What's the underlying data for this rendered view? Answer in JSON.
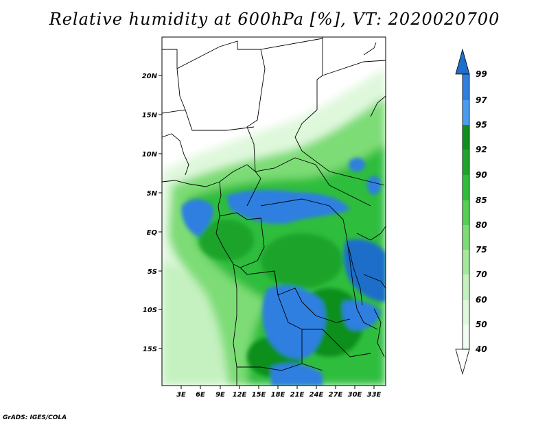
{
  "title": "Relative humidity at 600hPa [%], VT: 2020020700",
  "credit": "GrADS: IGES/COLA",
  "map": {
    "lat_ticks": [
      "20N",
      "15N",
      "10N",
      "5N",
      "EQ",
      "5S",
      "10S",
      "15S"
    ],
    "lon_ticks": [
      "3E",
      "6E",
      "9E",
      "12E",
      "15E",
      "18E",
      "21E",
      "24E",
      "27E",
      "30E",
      "33E"
    ]
  },
  "colorbar": {
    "levels": [
      "99",
      "97",
      "95",
      "92",
      "90",
      "85",
      "80",
      "75",
      "70",
      "60",
      "50",
      "40"
    ],
    "colors": {
      "above_99": "#1f6ec9",
      "97_99": "#2f7fe0",
      "95_97": "#4a9cf0",
      "92_95": "#0f8f1e",
      "90_92": "#1fa42c",
      "85_90": "#2fbd3c",
      "80_85": "#55cf55",
      "75_80": "#7ddc76",
      "70_75": "#a4e89e",
      "60_70": "#c4f1bf",
      "50_60": "#dff8dc",
      "40_50": "#f0fcef",
      "below_40": "#ffffff"
    }
  }
}
